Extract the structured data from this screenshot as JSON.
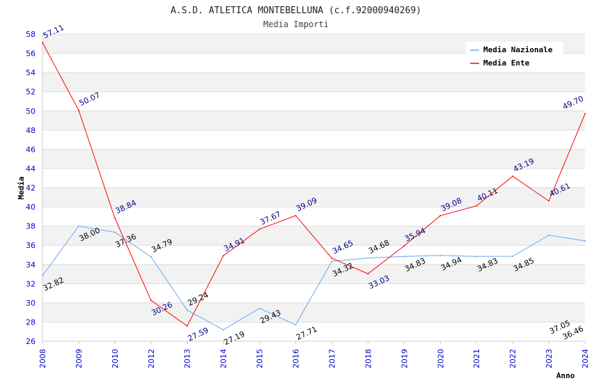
{
  "chart_data": {
    "type": "line",
    "title": "A.S.D. ATLETICA MONTEBELLUNA (c.f.92000940269)",
    "subtitle": "Media Importi",
    "xlabel": "Anno",
    "ylabel": "Media",
    "ylim": [
      26,
      58
    ],
    "yticks": [
      26,
      28,
      30,
      32,
      34,
      36,
      38,
      40,
      42,
      44,
      46,
      48,
      50,
      52,
      54,
      56,
      58
    ],
    "categories": [
      "2008",
      "2009",
      "2010",
      "2012",
      "2013",
      "2014",
      "2015",
      "2016",
      "2017",
      "2018",
      "2019",
      "2020",
      "2021",
      "2022",
      "2023",
      "2024"
    ],
    "legend_position": "top-right",
    "series": [
      {
        "name": "Media Nazionale",
        "color": "#66aaee",
        "label_color": "#000000",
        "values": [
          32.82,
          38.0,
          37.36,
          34.79,
          29.24,
          27.19,
          29.43,
          27.71,
          34.32,
          34.68,
          34.83,
          34.94,
          34.83,
          34.85,
          37.05,
          36.46
        ]
      },
      {
        "name": "Media Ente",
        "color": "#ff0000",
        "label_color": "#000080",
        "values": [
          57.11,
          50.07,
          38.84,
          30.26,
          27.59,
          34.91,
          37.67,
          39.09,
          34.65,
          33.03,
          35.94,
          39.08,
          40.11,
          43.19,
          40.61,
          49.7
        ]
      }
    ]
  }
}
